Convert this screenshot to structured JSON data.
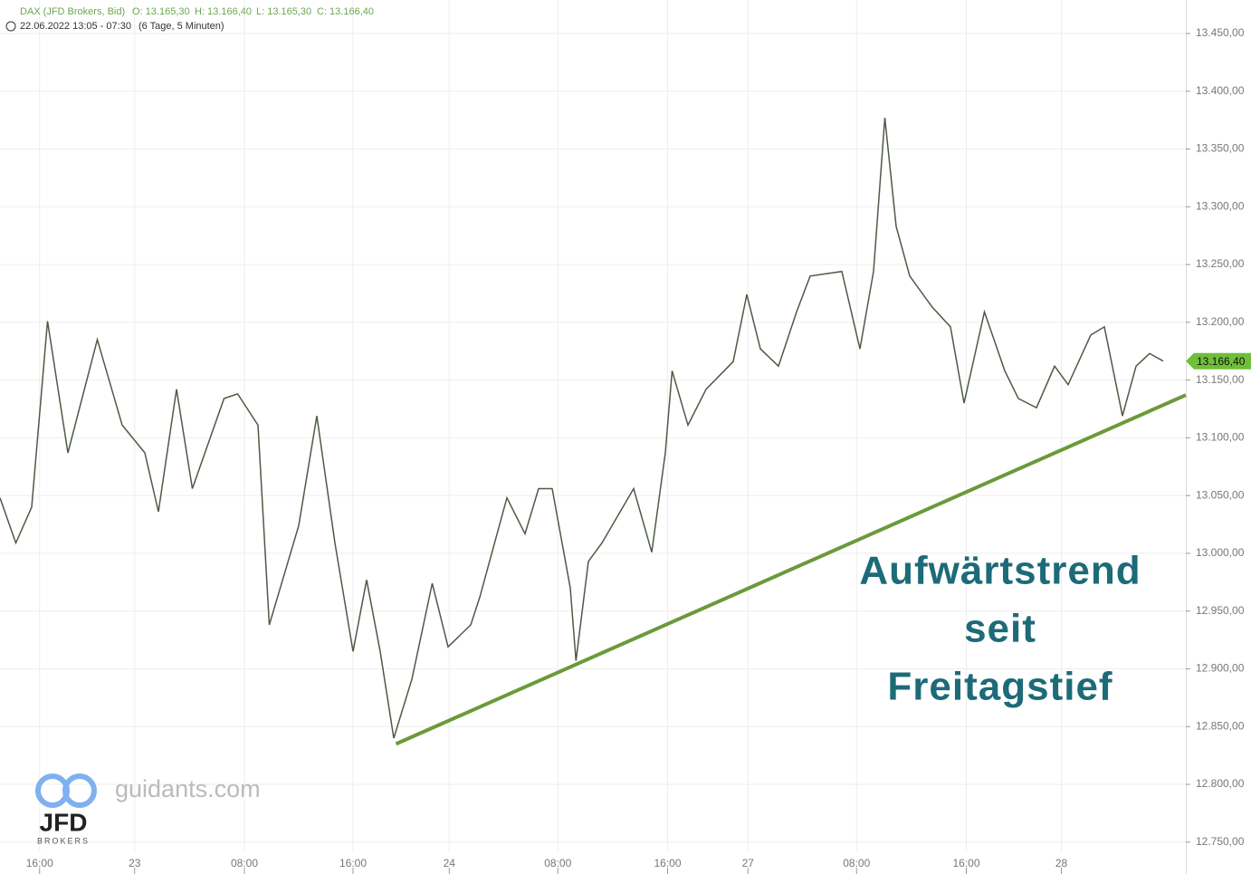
{
  "chart_data": {
    "type": "line",
    "header": {
      "symbol": "DAX (JFD Brokers, Bid)",
      "open": "O: 13.165,30",
      "high": "H: 13.166,40",
      "low": "L: 13.165,30",
      "close": "C: 13.166,40",
      "range": "22.06.2022 13:05 - 07:30",
      "span": "(6 Tage, 5 Minuten)"
    },
    "x": [
      0,
      14,
      28,
      42,
      60,
      86,
      108,
      128,
      140,
      156,
      170,
      198,
      210,
      228,
      238,
      264,
      280,
      296,
      312,
      324,
      336,
      348,
      364,
      382,
      396,
      416,
      424,
      448,
      464,
      476,
      488,
      504,
      509,
      520,
      532,
      560,
      576,
      588,
      594,
      608,
      624,
      648,
      660,
      672,
      688,
      704,
      716,
      744,
      760,
      772,
      782,
      792,
      804,
      824,
      840,
      852,
      870,
      888,
      900,
      916,
      932,
      944,
      964,
      976,
      992,
      1004,
      1016,
      1028
    ],
    "series": [
      {
        "color": "#4d5a44",
        "values": [
          13048,
          13009,
          13040,
          13201,
          13087,
          13185,
          13111,
          13087,
          13036,
          13142,
          13056,
          13134,
          13138,
          13111,
          12938,
          13024,
          13119,
          13009,
          12915,
          12977,
          12915,
          12840,
          12891,
          12974,
          12919,
          12938,
          12962,
          13048,
          13017,
          13056,
          13056,
          12970,
          12907,
          12993,
          13009,
          13056,
          13001,
          13087,
          13158,
          13111,
          13142,
          13166,
          13224,
          13177,
          13162,
          13209,
          13240,
          13244,
          13177,
          13244,
          13377,
          13283,
          13240,
          13213,
          13196,
          13130,
          13209,
          13158,
          13134,
          13126,
          13162,
          13146,
          13189,
          13196,
          13119,
          13162,
          13173,
          13166.4
        ]
      }
    ],
    "last_price": {
      "value": 13166.4,
      "label": "13.166,40",
      "color": "#6fbf3a"
    },
    "trendline": {
      "x": [
        350,
        1048
      ],
      "y": [
        12835,
        13137
      ],
      "color": "#6a9a3a"
    },
    "annotation": {
      "lines": [
        "Aufwärtstrend",
        "seit",
        "Freitagstief"
      ],
      "color": "#1d6b78"
    },
    "watermark": {
      "site": "guidants.com",
      "logo": "JFD",
      "logo_sub": "BROKERS"
    },
    "xlim": [
      0,
      1048
    ],
    "ylim": [
      12742,
      13479
    ],
    "xticks": [
      {
        "value": 35,
        "label": "16:00"
      },
      {
        "value": 119,
        "label": "23"
      },
      {
        "value": 216,
        "label": "08:00"
      },
      {
        "value": 312,
        "label": "16:00"
      },
      {
        "value": 397,
        "label": "24"
      },
      {
        "value": 493,
        "label": "08:00"
      },
      {
        "value": 590,
        "label": "16:00"
      },
      {
        "value": 661,
        "label": "27"
      },
      {
        "value": 757,
        "label": "08:00"
      },
      {
        "value": 854,
        "label": "16:00"
      },
      {
        "value": 938,
        "label": "28"
      }
    ],
    "yticks": [
      {
        "value": 12750,
        "label": "12.750,00"
      },
      {
        "value": 12800,
        "label": "12.800,00"
      },
      {
        "value": 12850,
        "label": "12.850,00"
      },
      {
        "value": 12900,
        "label": "12.900,00"
      },
      {
        "value": 12950,
        "label": "12.950,00"
      },
      {
        "value": 13000,
        "label": "13.000,00"
      },
      {
        "value": 13050,
        "label": "13.050,00"
      },
      {
        "value": 13100,
        "label": "13.100,00"
      },
      {
        "value": 13150,
        "label": "13.150,00"
      },
      {
        "value": 13200,
        "label": "13.200,00"
      },
      {
        "value": 13250,
        "label": "13.250,00"
      },
      {
        "value": 13300,
        "label": "13.300,00"
      },
      {
        "value": 13350,
        "label": "13.350,00"
      },
      {
        "value": 13400,
        "label": "13.400,00"
      },
      {
        "value": 13450,
        "label": "13.450,00"
      }
    ],
    "grid": true
  }
}
